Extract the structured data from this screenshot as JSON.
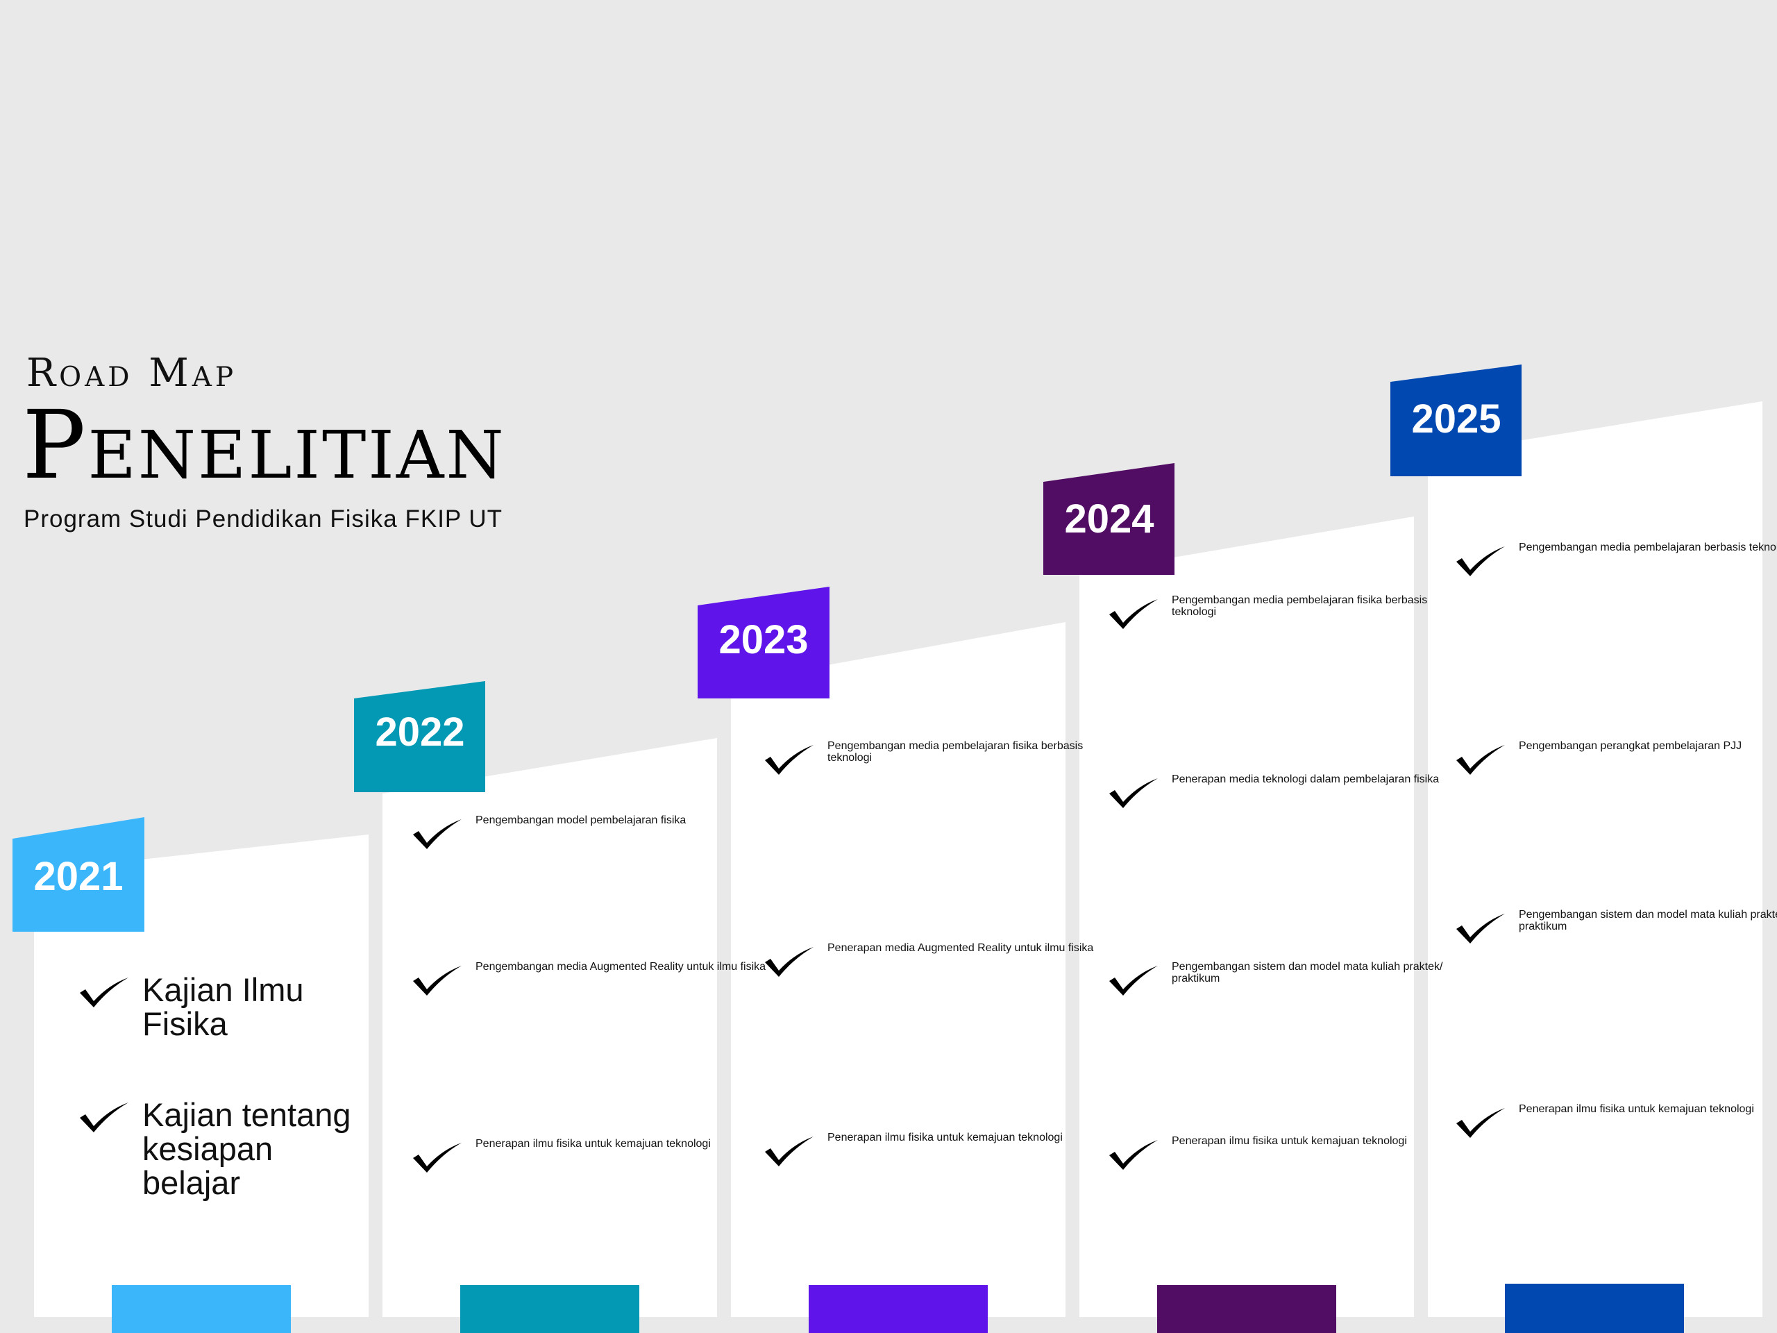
{
  "header": {
    "roadmap": "Road Map",
    "title": "Penelitian",
    "subtitle": "Program Studi Pendidikan Fisika FKIP UT"
  },
  "colors": {
    "background": "#e9e9e9",
    "card": "#ffffff",
    "y2021": "#3bb6fb",
    "y2022": "#0399b5",
    "y2023": "#5f15ea",
    "y2024": "#510c64",
    "y2025": "#0149b1"
  },
  "icons": {
    "item_bullet": "checkmark-icon"
  },
  "years": [
    {
      "label": "2021",
      "items": [
        "Kajian Ilmu Fisika",
        "Kajian tentang kesiapan belajar"
      ]
    },
    {
      "label": "2022",
      "items": [
        "Pengembangan model pembelajaran fisika",
        "Pengembangan media Augmented Reality untuk ilmu fisika",
        "Penerapan ilmu fisika untuk kemajuan teknologi"
      ]
    },
    {
      "label": "2023",
      "items": [
        "Pengembangan media pembelajaran fisika berbasis teknologi",
        "Penerapan media Augmented Reality untuk ilmu fisika",
        "Penerapan ilmu fisika untuk kemajuan teknologi"
      ]
    },
    {
      "label": "2024",
      "items": [
        "Pengembangan media pembelajaran fisika berbasis teknologi",
        "Penerapan media teknologi dalam pembelajaran fisika",
        "Pengembangan sistem dan model mata kuliah praktek/ praktikum",
        "Penerapan ilmu fisika untuk kemajuan teknologi"
      ]
    },
    {
      "label": "2025",
      "items": [
        "Pengembangan media pembelajaran berbasis teknologi",
        "Pengembangan perangkat pembelajaran PJJ",
        "Pengembangan sistem dan model mata kuliah praktek/ praktikum",
        "Penerapan ilmu fisika untuk kemajuan teknologi"
      ]
    }
  ]
}
